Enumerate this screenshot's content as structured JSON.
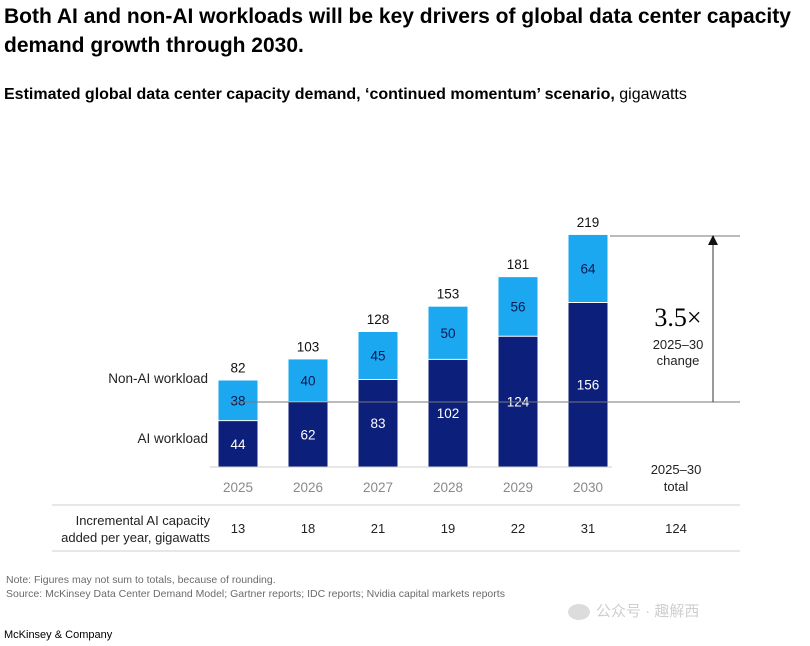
{
  "header": {
    "title": "Both AI and non-AI workloads will be key drivers of global data center capacity demand growth through 2030.",
    "subtitle_strong": "Estimated global data center capacity demand, ‘continued momentum’ scenario,",
    "subtitle_unit": " gigawatts"
  },
  "chart_data": {
    "type": "bar",
    "stacked": true,
    "categories": [
      "2025",
      "2026",
      "2027",
      "2028",
      "2029",
      "2030"
    ],
    "series": [
      {
        "name": "AI workload",
        "values": [
          44,
          62,
          83,
          102,
          124,
          156
        ],
        "color": "#0c1f7a"
      },
      {
        "name": "Non-AI workload",
        "values": [
          38,
          40,
          45,
          50,
          56,
          64
        ],
        "color": "#1ba8f0"
      }
    ],
    "totals": [
      82,
      103,
      128,
      153,
      181,
      219
    ],
    "grid": false,
    "legend": "left, inline labels",
    "annotation": {
      "value": "3.5×",
      "label_line1": "2025–30",
      "label_line2": "change"
    },
    "total_column": {
      "label_line1": "2025–30",
      "label_line2": "total"
    },
    "incremental_row": {
      "label_line1": "Incremental AI capacity",
      "label_line2": "added per year, gigawatts",
      "values": [
        "13",
        "18",
        "21",
        "19",
        "22",
        "31"
      ],
      "total": "124"
    }
  },
  "footer": {
    "note": "Note: Figures may not sum to totals, because of rounding.",
    "source": "Source: McKinsey Data Center Demand Model; Gartner reports; IDC reports; Nvidia capital markets reports",
    "brand": "McKinsey & Company",
    "watermark": "公众号 · 趣解西"
  }
}
